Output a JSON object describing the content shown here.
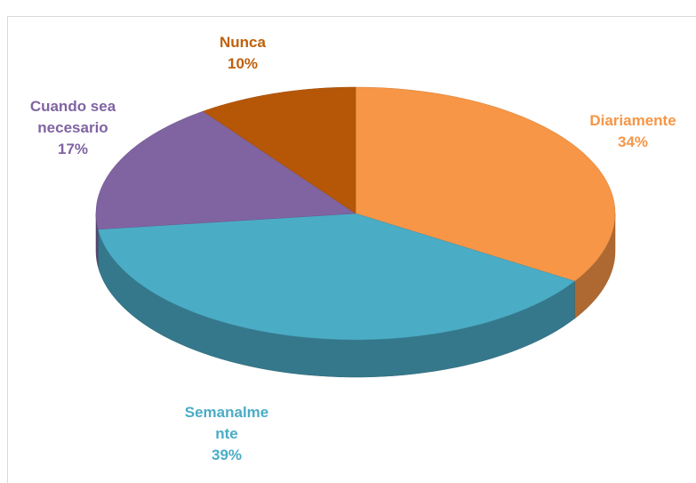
{
  "chart_data": {
    "type": "pie",
    "categories": [
      "Diariamente",
      "Semanalmente",
      "Cuando sea necesario",
      "Nunca"
    ],
    "values": [
      34,
      39,
      17,
      10
    ],
    "value_labels": [
      "34%",
      "39%",
      "17%",
      "10%"
    ],
    "colors": [
      "#f79646",
      "#4bacc6",
      "#8064a2",
      "#b65708"
    ]
  }
}
